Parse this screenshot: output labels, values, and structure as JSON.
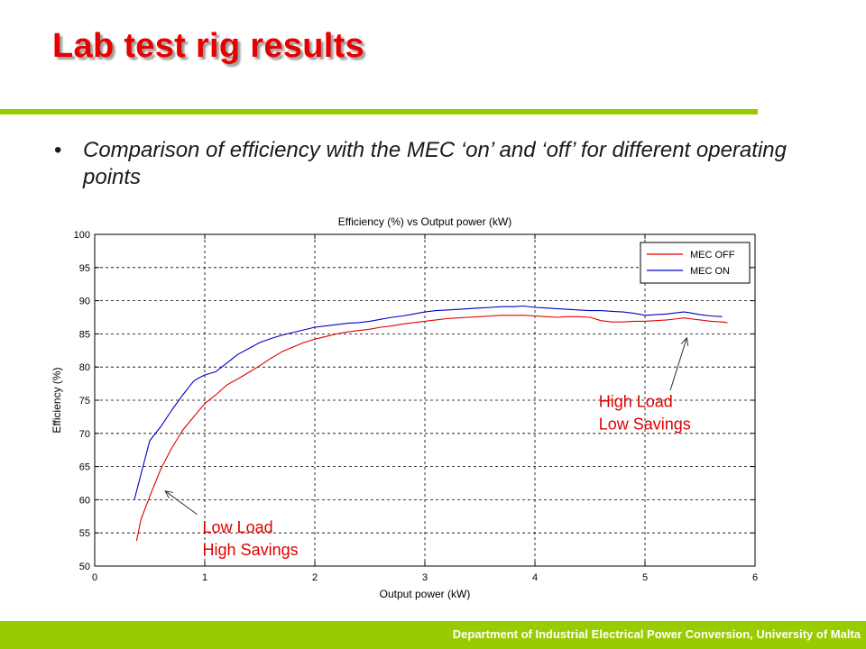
{
  "slide": {
    "title": "Lab test rig results",
    "bullet": "Comparison of efficiency with the MEC ‘on’ and ‘off’ for different operating points",
    "footer": "Department of Industrial Electrical Power Conversion, University of Malta",
    "accent_color": "#99cc00",
    "title_color": "#e60000"
  },
  "chart_data": {
    "type": "line",
    "title": "Efficiency (%) vs Output power (kW)",
    "xlabel": "Output power (kW)",
    "ylabel": "Efficiency (%)",
    "xlim": [
      0,
      6
    ],
    "ylim": [
      50,
      100
    ],
    "xticks": [
      "0",
      "1",
      "2",
      "3",
      "4",
      "5",
      "6"
    ],
    "yticks": [
      "50",
      "55",
      "60",
      "65",
      "70",
      "75",
      "80",
      "85",
      "90",
      "95",
      "100"
    ],
    "grid": true,
    "legend": "top-right",
    "series": [
      {
        "name": "MEC OFF",
        "color": "#e00000",
        "x": [
          0.38,
          0.42,
          0.5,
          0.6,
          0.7,
          0.8,
          0.9,
          1.0,
          1.1,
          1.2,
          1.3,
          1.4,
          1.5,
          1.6,
          1.7,
          1.8,
          1.9,
          2.0,
          2.1,
          2.2,
          2.3,
          2.4,
          2.5,
          2.6,
          2.7,
          2.8,
          2.9,
          3.0,
          3.1,
          3.2,
          3.3,
          3.4,
          3.5,
          3.6,
          3.7,
          3.8,
          3.9,
          4.0,
          4.1,
          4.2,
          4.3,
          4.4,
          4.5,
          4.6,
          4.7,
          4.8,
          4.9,
          5.0,
          5.1,
          5.2,
          5.3,
          5.35,
          5.4,
          5.5,
          5.6,
          5.7,
          5.75
        ],
        "y": [
          53.8,
          57.0,
          60.5,
          64.6,
          67.8,
          70.5,
          72.5,
          74.5,
          75.8,
          77.3,
          78.2,
          79.2,
          80.2,
          81.3,
          82.3,
          83.0,
          83.7,
          84.2,
          84.6,
          85.0,
          85.3,
          85.5,
          85.7,
          86.0,
          86.2,
          86.5,
          86.7,
          86.9,
          87.1,
          87.3,
          87.4,
          87.5,
          87.6,
          87.7,
          87.8,
          87.8,
          87.8,
          87.7,
          87.6,
          87.5,
          87.6,
          87.6,
          87.5,
          87.0,
          86.8,
          86.8,
          86.9,
          86.9,
          87.0,
          87.1,
          87.3,
          87.4,
          87.3,
          87.1,
          86.9,
          86.8,
          86.7
        ]
      },
      {
        "name": "MEC ON",
        "color": "#0000c8",
        "x": [
          0.36,
          0.5,
          0.6,
          0.7,
          0.8,
          0.9,
          0.95,
          1.0,
          1.1,
          1.2,
          1.3,
          1.4,
          1.5,
          1.6,
          1.7,
          1.8,
          1.9,
          2.0,
          2.1,
          2.2,
          2.3,
          2.4,
          2.5,
          2.6,
          2.7,
          2.8,
          2.9,
          3.0,
          3.1,
          3.2,
          3.3,
          3.4,
          3.5,
          3.6,
          3.7,
          3.8,
          3.9,
          4.0,
          4.1,
          4.2,
          4.3,
          4.4,
          4.5,
          4.6,
          4.7,
          4.8,
          4.9,
          5.0,
          5.1,
          5.2,
          5.3,
          5.35,
          5.4,
          5.5,
          5.6,
          5.7
        ],
        "y": [
          60.0,
          68.9,
          71.0,
          73.5,
          75.8,
          77.9,
          78.4,
          78.8,
          79.3,
          80.6,
          81.9,
          82.8,
          83.7,
          84.3,
          84.8,
          85.2,
          85.6,
          86.0,
          86.2,
          86.4,
          86.6,
          86.7,
          86.9,
          87.2,
          87.5,
          87.7,
          88.0,
          88.3,
          88.5,
          88.6,
          88.7,
          88.8,
          88.9,
          89.0,
          89.1,
          89.1,
          89.2,
          89.0,
          88.9,
          88.8,
          88.7,
          88.6,
          88.5,
          88.5,
          88.4,
          88.3,
          88.1,
          87.8,
          87.9,
          88.0,
          88.2,
          88.3,
          88.2,
          87.9,
          87.7,
          87.6
        ]
      }
    ],
    "annotations": [
      {
        "lines": [
          "Low Load",
          "High Savings"
        ],
        "color": "#e00000",
        "text_at": [
          0.98,
          55.0
        ],
        "arrow_from": [
          0.93,
          57.8
        ],
        "arrow_to": [
          0.64,
          61.3
        ]
      },
      {
        "lines": [
          "High Load",
          "Low Savings"
        ],
        "color": "#e00000",
        "text_at": [
          4.58,
          74.0
        ],
        "arrow_from": [
          5.23,
          76.5
        ],
        "arrow_to": [
          5.38,
          84.4
        ]
      }
    ]
  }
}
